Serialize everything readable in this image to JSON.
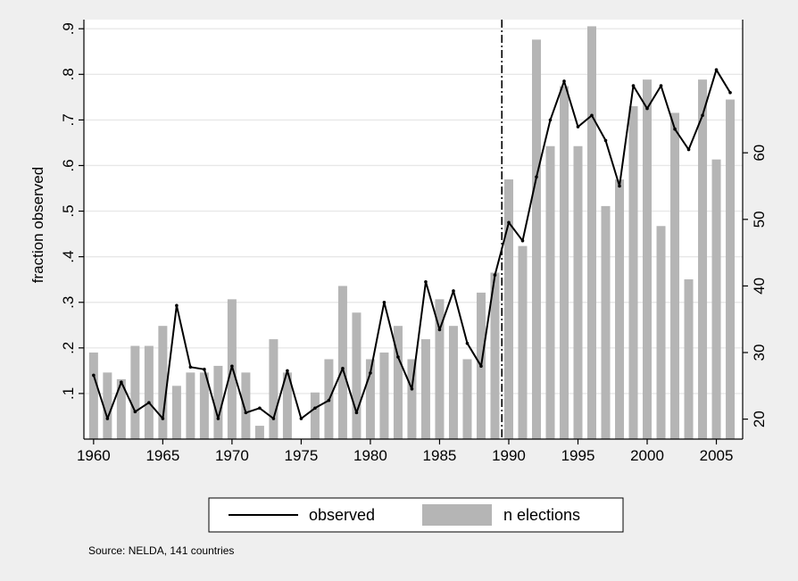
{
  "chart_data": {
    "type": "bar+line",
    "colors": {
      "outer_background": "#efefef",
      "plot_background": "#ffffff",
      "gridline": "#e8e8e8",
      "bar_fill": "#b5b5b5",
      "line": "#000000"
    },
    "x": [
      1960,
      1961,
      1962,
      1963,
      1964,
      1965,
      1966,
      1967,
      1968,
      1969,
      1970,
      1971,
      1972,
      1973,
      1974,
      1975,
      1976,
      1977,
      1978,
      1979,
      1980,
      1981,
      1982,
      1983,
      1984,
      1985,
      1986,
      1987,
      1988,
      1989,
      1990,
      1991,
      1992,
      1993,
      1994,
      1995,
      1996,
      1997,
      1998,
      1999,
      2000,
      2001,
      2002,
      2003,
      2004,
      2005,
      2006
    ],
    "x_ticks": [
      1960,
      1965,
      1970,
      1975,
      1980,
      1985,
      1990,
      1995,
      2000,
      2005
    ],
    "x_tick_labels": [
      "1960",
      "1965",
      "1970",
      "1975",
      "1980",
      "1985",
      "1990",
      "1995",
      "2000",
      "2005"
    ],
    "xlim": [
      1959.3,
      2006.9
    ],
    "series": [
      {
        "name": "observed",
        "kind": "line",
        "axis": "left",
        "values": [
          0.14,
          0.045,
          0.125,
          0.06,
          0.08,
          0.045,
          0.293,
          0.158,
          0.153,
          0.045,
          0.16,
          0.058,
          0.068,
          0.045,
          0.15,
          0.045,
          0.068,
          0.085,
          0.155,
          0.058,
          0.145,
          0.3,
          0.18,
          0.11,
          0.345,
          0.24,
          0.325,
          0.21,
          0.16,
          0.36,
          0.475,
          0.435,
          0.575,
          0.7,
          0.785,
          0.685,
          0.71,
          0.655,
          0.555,
          0.775,
          0.725,
          0.775,
          0.68,
          0.635,
          0.71,
          0.81,
          0.76
        ]
      },
      {
        "name": "n elections",
        "kind": "bar",
        "axis": "right",
        "values": [
          30,
          27,
          26,
          31,
          31,
          34,
          25,
          27,
          27,
          28,
          38,
          27,
          19,
          32,
          27,
          null,
          24,
          29,
          40,
          36,
          29,
          30,
          34,
          29,
          32,
          38,
          34,
          29,
          39,
          42,
          56,
          46,
          77,
          61,
          70,
          61,
          79,
          52,
          56,
          67,
          71,
          49,
          66,
          41,
          71,
          59,
          68
        ]
      }
    ],
    "left_axis": {
      "label": "fraction observed",
      "ylim": [
        0,
        0.92
      ],
      "ticks": [
        0.1,
        0.2,
        0.3,
        0.4,
        0.5,
        0.6,
        0.7,
        0.8,
        0.9
      ],
      "tick_labels": [
        ".1",
        ".2",
        ".3",
        ".4",
        ".5",
        ".6",
        ".7",
        ".8",
        ".9"
      ],
      "grid": true
    },
    "right_axis": {
      "label": "",
      "ylim": [
        17,
        80
      ],
      "ticks": [
        20,
        30,
        40,
        50,
        60
      ],
      "tick_labels": [
        "20",
        "30",
        "40",
        "50",
        "60"
      ]
    },
    "vline": {
      "x": 1989.5,
      "style": "dash-dot"
    },
    "legend": {
      "position": "bottom",
      "entries": [
        "observed",
        "n elections"
      ]
    },
    "note": "Source: NELDA, 141 countries"
  }
}
